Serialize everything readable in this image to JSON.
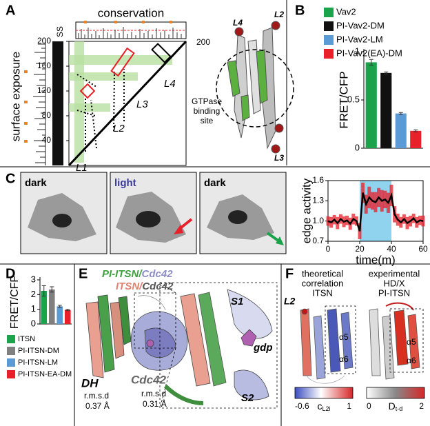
{
  "labels": {
    "a": "A",
    "b": "B",
    "c": "C",
    "d": "D",
    "e": "E",
    "f": "F"
  },
  "panel_a": {
    "conservation": "conservation",
    "surface_exposure": "surface exposure",
    "ss": "SS",
    "map_ticks": [
      40,
      80,
      120,
      160,
      200
    ],
    "map_x_end": 200,
    "loops": [
      "L1",
      "L2",
      "L3",
      "L4"
    ],
    "structure_loops": [
      "L4",
      "L2",
      "L3"
    ],
    "site": [
      "GTPase",
      "binding",
      "site"
    ]
  },
  "panel_c": {
    "frames": [
      "dark",
      "light",
      "dark"
    ]
  },
  "panel_e": {
    "title_pi": [
      "PI-ITSN/",
      "Cdc42"
    ],
    "title_wt": [
      "ITSN/",
      "Cdc42"
    ],
    "dh": "DH",
    "rmsd": "r.m.s.d",
    "dh_rmsd": "0.37 Å",
    "cdc42": "Cdc42",
    "cdc42_rmsd": "0.31 Å",
    "s1": "S1",
    "gdp": "gdp",
    "s2": "S2"
  },
  "panel_f": {
    "theoretical": [
      "theoretical",
      "correlation",
      "ITSN"
    ],
    "l2": "L2",
    "a5": "α5",
    "a6": "α6",
    "experimental": [
      "experimental",
      "HD/X",
      "PI-ITSN"
    ],
    "scale_left": {
      "min": -0.6,
      "main": "c",
      "sub": "L2i",
      "max": 1
    },
    "scale_right": {
      "min": 0,
      "main": "D",
      "sub": "t-d",
      "max": 2
    }
  },
  "chart_data": [
    {
      "type": "bar",
      "ylabel": "FRET/CFP",
      "legend": "top",
      "categories": [
        "Vav2",
        "PI-Vav2-DM",
        "PI-Vav2-LM",
        "PI-Vav2(EA)-DM"
      ],
      "values": [
        0.89,
        0.78,
        0.36,
        0.18
      ],
      "errors": [
        0.03,
        0.01,
        0.01,
        0.01
      ],
      "colors": [
        "#1aa34a",
        "#111111",
        "#5b9bd5",
        "#e8202a"
      ],
      "ylim": [
        0,
        1
      ],
      "yticks": [
        0,
        0.5,
        1
      ]
    },
    {
      "type": "line",
      "ylabel": "edge activity",
      "xlabel": "time(m)",
      "x": [
        0,
        2,
        4,
        6,
        8,
        10,
        12,
        14,
        16,
        18,
        20,
        22,
        24,
        26,
        28,
        30,
        32,
        34,
        36,
        38,
        40,
        42,
        44,
        46,
        48,
        50,
        52,
        54,
        56,
        58,
        60
      ],
      "series": [
        {
          "color": "#000000",
          "error_color": "#e8202a",
          "values": [
            1.0,
            0.98,
            1.02,
            0.97,
            1.03,
            0.99,
            1.01,
            0.96,
            1.03,
            1.0,
            0.85,
            1.42,
            1.25,
            1.35,
            1.3,
            1.28,
            1.35,
            1.3,
            1.32,
            1.27,
            1.38,
            1.1,
            1.02,
            0.98,
            1.03,
            0.97,
            1.0,
            1.04,
            0.98,
            1.01,
            1.0
          ],
          "errors": [
            0.07,
            0.08,
            0.07,
            0.09,
            0.07,
            0.08,
            0.07,
            0.09,
            0.08,
            0.07,
            0.12,
            0.15,
            0.14,
            0.16,
            0.13,
            0.15,
            0.14,
            0.16,
            0.13,
            0.15,
            0.16,
            0.12,
            0.09,
            0.08,
            0.07,
            0.09,
            0.08,
            0.07,
            0.08,
            0.07,
            0.08
          ]
        }
      ],
      "highlight": [
        20,
        40
      ],
      "highlight_color": "#8fd3ee",
      "xlim": [
        0,
        60
      ],
      "xticks": [
        0,
        20,
        40,
        60
      ],
      "ylim": [
        0.7,
        1.6
      ],
      "yticks": [
        0.7,
        {
          "value": 1,
          "label": "1.0"
        },
        1.3,
        1.6
      ]
    },
    {
      "type": "bar",
      "ylabel": "FRET/CFP",
      "legend": "bottom",
      "categories": [
        "ITSN",
        "PI-ITSN-DM",
        "PI-ITSN-LM",
        "PI-ITSN-EA-DM"
      ],
      "values": [
        2.25,
        2.35,
        1.2,
        0.95
      ],
      "errors": [
        0.35,
        0.18,
        0.07,
        0.05
      ],
      "colors": [
        "#1aa34a",
        "#808080",
        "#5b9bd5",
        "#e8202a"
      ],
      "ylim": [
        0,
        3
      ],
      "yticks": [
        0,
        1,
        2,
        3
      ]
    }
  ]
}
